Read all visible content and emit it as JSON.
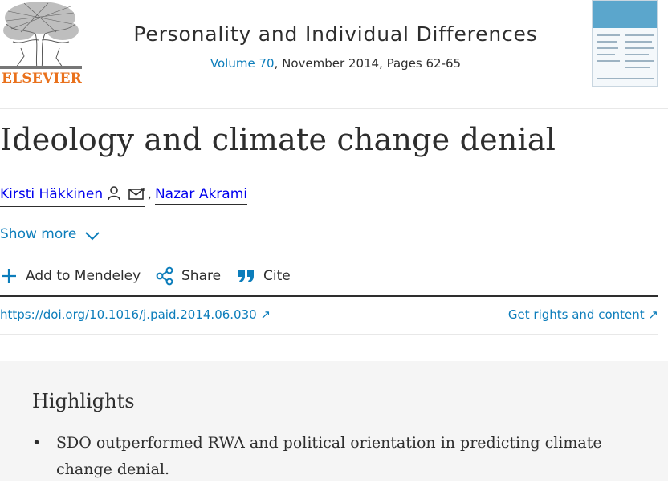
{
  "journal": {
    "publisher_logo_text": "ELSEVIER",
    "title": "Personality and Individual Differences",
    "volume_link": "Volume 70",
    "meta_rest": ", November 2014, Pages 62-65"
  },
  "article": {
    "title": "Ideology and climate change denial",
    "authors": [
      {
        "name": "Kirsti Häkkinen"
      },
      {
        "name": "Nazar Akrami"
      }
    ],
    "author_separator": ",",
    "show_more": "Show more"
  },
  "toolbar": {
    "mendeley": "Add to Mendeley",
    "share": "Share",
    "cite": "Cite"
  },
  "links": {
    "doi": "https://doi.org/10.1016/j.paid.2014.06.030 ↗",
    "rights": "Get rights and content ↗"
  },
  "highlights": {
    "title": "Highlights",
    "items": [
      "SDO outperformed RWA and political orientation in predicting climate change denial."
    ]
  },
  "colors": {
    "link": "#0c7dbb",
    "elsevier_orange": "#e9711c",
    "text": "#2e2e2e",
    "panel_bg": "#f5f5f5"
  },
  "icons": {
    "author_person": "person-icon",
    "author_email": "envelope-icon",
    "show_more": "chevron-down-icon",
    "mendeley": "plus-icon",
    "share": "share-icon",
    "cite": "quote-icon"
  }
}
